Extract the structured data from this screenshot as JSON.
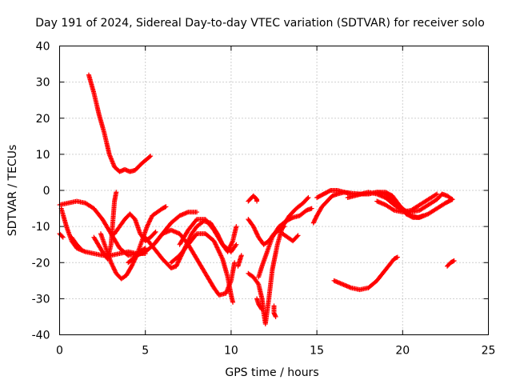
{
  "chart_data": {
    "type": "scatter",
    "title": "Day 191 of 2024, Sidereal Day-to-day VTEC variation (SDTVAR) for receiver solo",
    "xlabel": "GPS time / hours",
    "ylabel": "SDTVAR / TECUs",
    "xlim": [
      0,
      25
    ],
    "ylim": [
      -40,
      40
    ],
    "xticks": [
      0,
      5,
      10,
      15,
      20,
      25
    ],
    "yticks": [
      -40,
      -30,
      -20,
      -10,
      0,
      10,
      20,
      30,
      40
    ],
    "grid": true,
    "marker": "+",
    "color": "#ff0000",
    "series": [
      {
        "name": "arc-1",
        "points": [
          [
            1.7,
            32
          ],
          [
            2.0,
            27
          ],
          [
            2.3,
            21
          ],
          [
            2.6,
            16
          ],
          [
            2.9,
            10
          ],
          [
            3.2,
            6.5
          ],
          [
            3.5,
            5.2
          ],
          [
            3.8,
            5.8
          ],
          [
            4.1,
            5.2
          ],
          [
            4.4,
            5.6
          ],
          [
            4.8,
            7.5
          ],
          [
            5.3,
            9.5
          ]
        ]
      },
      {
        "name": "arc-2",
        "points": [
          [
            0,
            -4
          ],
          [
            0.5,
            -3.5
          ],
          [
            1.0,
            -3
          ],
          [
            1.5,
            -3.5
          ],
          [
            2.0,
            -5
          ],
          [
            2.5,
            -8
          ],
          [
            3.0,
            -12
          ],
          [
            3.5,
            -16
          ],
          [
            4.0,
            -18
          ],
          [
            4.5,
            -17.5
          ],
          [
            5.0,
            -16
          ]
        ]
      },
      {
        "name": "arc-3",
        "points": [
          [
            0.1,
            -5
          ],
          [
            0.4,
            -10
          ],
          [
            0.7,
            -14
          ],
          [
            1.0,
            -16
          ],
          [
            1.5,
            -17
          ],
          [
            2.0,
            -17.5
          ],
          [
            2.5,
            -18
          ],
          [
            3.0,
            -18
          ],
          [
            3.5,
            -17.5
          ],
          [
            4.0,
            -17
          ],
          [
            4.5,
            -17.5
          ],
          [
            5.0,
            -17.5
          ]
        ]
      },
      {
        "name": "arc-4",
        "points": [
          [
            0,
            -12
          ],
          [
            0.2,
            -13
          ]
        ]
      },
      {
        "name": "arc-5",
        "points": [
          [
            0.7,
            -13
          ],
          [
            1.0,
            -15
          ],
          [
            1.3,
            -16.5
          ]
        ]
      },
      {
        "name": "arc-6",
        "points": [
          [
            2.0,
            -13
          ],
          [
            2.5,
            -17
          ],
          [
            2.8,
            -19
          ],
          [
            3.0,
            -15
          ],
          [
            3.1,
            -9
          ],
          [
            3.2,
            -3
          ],
          [
            3.3,
            -0.5
          ]
        ]
      },
      {
        "name": "arc-7",
        "points": [
          [
            2.4,
            -12
          ],
          [
            2.7,
            -16
          ],
          [
            3.0,
            -20
          ],
          [
            3.3,
            -23
          ],
          [
            3.6,
            -24.5
          ],
          [
            3.9,
            -23.5
          ],
          [
            4.2,
            -21
          ],
          [
            4.5,
            -18
          ],
          [
            4.8,
            -14
          ],
          [
            5.1,
            -10
          ],
          [
            5.4,
            -7
          ],
          [
            5.7,
            -6
          ],
          [
            6.0,
            -5
          ],
          [
            6.2,
            -4.5
          ]
        ]
      },
      {
        "name": "arc-8",
        "points": [
          [
            3.2,
            -12
          ],
          [
            3.5,
            -10
          ],
          [
            3.8,
            -8
          ],
          [
            4.1,
            -6.5
          ],
          [
            4.4,
            -8
          ],
          [
            4.7,
            -12
          ],
          [
            5.0,
            -14
          ],
          [
            5.3,
            -13
          ],
          [
            5.6,
            -11.5
          ]
        ]
      },
      {
        "name": "arc-9",
        "points": [
          [
            5.0,
            -13
          ],
          [
            5.5,
            -16
          ],
          [
            6.0,
            -19
          ],
          [
            6.5,
            -21.5
          ],
          [
            6.8,
            -21
          ],
          [
            7.1,
            -18
          ],
          [
            7.4,
            -15
          ],
          [
            7.7,
            -12
          ],
          [
            8.0,
            -10
          ],
          [
            8.4,
            -8.5
          ],
          [
            8.8,
            -9
          ],
          [
            9.2,
            -12
          ],
          [
            9.5,
            -15
          ],
          [
            9.8,
            -17
          ],
          [
            10.1,
            -14
          ],
          [
            10.3,
            -10
          ]
        ]
      },
      {
        "name": "arc-10",
        "points": [
          [
            4.0,
            -20
          ],
          [
            4.5,
            -18
          ],
          [
            5.0,
            -17
          ],
          [
            5.5,
            -15
          ],
          [
            6.0,
            -12
          ],
          [
            6.5,
            -9
          ],
          [
            7.0,
            -7
          ],
          [
            7.5,
            -6
          ],
          [
            8.0,
            -6
          ]
        ]
      },
      {
        "name": "arc-11",
        "points": [
          [
            5.5,
            -15
          ],
          [
            6.0,
            -12
          ],
          [
            6.5,
            -11
          ],
          [
            7.0,
            -12
          ],
          [
            7.5,
            -15
          ],
          [
            8.0,
            -19
          ],
          [
            8.5,
            -23
          ],
          [
            9.0,
            -27
          ],
          [
            9.3,
            -29
          ],
          [
            9.7,
            -28.5
          ],
          [
            10.0,
            -25
          ],
          [
            10.2,
            -20
          ]
        ]
      },
      {
        "name": "arc-12",
        "points": [
          [
            7.0,
            -15
          ],
          [
            7.5,
            -11
          ],
          [
            8.0,
            -8
          ],
          [
            8.5,
            -8
          ],
          [
            9.0,
            -11
          ],
          [
            9.5,
            -15
          ],
          [
            10.0,
            -17
          ],
          [
            10.3,
            -15
          ]
        ]
      },
      {
        "name": "arc-13",
        "points": [
          [
            6.5,
            -20
          ],
          [
            7.0,
            -18
          ],
          [
            7.5,
            -15
          ],
          [
            8.0,
            -12
          ],
          [
            8.5,
            -12
          ],
          [
            9.0,
            -14
          ],
          [
            9.5,
            -19
          ],
          [
            9.8,
            -24
          ],
          [
            10.0,
            -29
          ],
          [
            10.1,
            -31
          ]
        ]
      },
      {
        "name": "arc-14",
        "points": [
          [
            10.4,
            -21
          ],
          [
            10.5,
            -19.5
          ],
          [
            10.6,
            -18
          ]
        ]
      },
      {
        "name": "arc-15",
        "points": [
          [
            11.0,
            -3
          ],
          [
            11.3,
            -1.5
          ],
          [
            11.5,
            -2.5
          ],
          [
            11.5,
            -3
          ]
        ]
      },
      {
        "name": "arc-16",
        "points": [
          [
            11.0,
            -8
          ],
          [
            11.3,
            -10
          ],
          [
            11.6,
            -13
          ],
          [
            11.9,
            -15
          ],
          [
            12.2,
            -14
          ],
          [
            12.5,
            -12
          ],
          [
            12.8,
            -11
          ],
          [
            13.1,
            -10
          ]
        ]
      },
      {
        "name": "arc-17",
        "points": [
          [
            11.0,
            -23
          ],
          [
            11.3,
            -24
          ],
          [
            11.6,
            -26
          ],
          [
            11.8,
            -30
          ],
          [
            11.9,
            -34
          ],
          [
            12.0,
            -37
          ],
          [
            12.2,
            -30
          ],
          [
            12.4,
            -22
          ],
          [
            12.7,
            -15
          ],
          [
            13.0,
            -10
          ],
          [
            13.4,
            -7
          ],
          [
            13.8,
            -5
          ],
          [
            14.2,
            -3.5
          ],
          [
            14.5,
            -2
          ]
        ]
      },
      {
        "name": "arc-18",
        "points": [
          [
            11.5,
            -30
          ],
          [
            11.6,
            -31.5
          ],
          [
            11.8,
            -33
          ]
        ]
      },
      {
        "name": "arc-19",
        "points": [
          [
            11.6,
            -24
          ],
          [
            11.8,
            -21
          ],
          [
            12.1,
            -17
          ],
          [
            12.4,
            -13
          ],
          [
            12.8,
            -10
          ],
          [
            13.2,
            -8.5
          ],
          [
            13.6,
            -7.5
          ],
          [
            14.0,
            -7
          ],
          [
            14.4,
            -5.5
          ],
          [
            14.7,
            -5
          ]
        ]
      },
      {
        "name": "arc-20",
        "points": [
          [
            12.5,
            -32
          ],
          [
            12.5,
            -34
          ],
          [
            12.6,
            -35
          ]
        ]
      },
      {
        "name": "arc-21",
        "points": [
          [
            13.0,
            -12
          ],
          [
            13.3,
            -13
          ],
          [
            13.6,
            -14
          ],
          [
            13.9,
            -12.5
          ]
        ]
      },
      {
        "name": "arc-22",
        "points": [
          [
            14.8,
            -9
          ],
          [
            15.0,
            -7
          ],
          [
            15.3,
            -4.5
          ],
          [
            15.6,
            -3
          ],
          [
            15.9,
            -1.5
          ],
          [
            16.2,
            -1
          ],
          [
            16.6,
            -0.5
          ],
          [
            17.0,
            -0.8
          ],
          [
            17.5,
            -1
          ],
          [
            18.0,
            -1
          ],
          [
            18.5,
            -0.5
          ],
          [
            19.0,
            -0.5
          ],
          [
            19.4,
            -1.5
          ],
          [
            19.8,
            -4
          ],
          [
            20.2,
            -6.5
          ],
          [
            20.6,
            -7.5
          ],
          [
            21.0,
            -7.5
          ],
          [
            21.5,
            -6.5
          ],
          [
            22.0,
            -5
          ],
          [
            22.5,
            -3.5
          ],
          [
            22.9,
            -2.5
          ]
        ]
      },
      {
        "name": "arc-23",
        "points": [
          [
            15.0,
            -2
          ],
          [
            15.4,
            -1
          ],
          [
            15.8,
            0
          ],
          [
            16.2,
            0
          ],
          [
            16.6,
            -0.5
          ],
          [
            17.0,
            -1
          ],
          [
            17.5,
            -1
          ],
          [
            18.0,
            -1
          ],
          [
            18.5,
            -0.5
          ],
          [
            19.0,
            -1
          ],
          [
            19.5,
            -3
          ],
          [
            20.0,
            -5
          ],
          [
            20.5,
            -7
          ],
          [
            20.9,
            -7.5
          ],
          [
            21.2,
            -7
          ]
        ]
      },
      {
        "name": "arc-24",
        "points": [
          [
            16.8,
            -2
          ],
          [
            17.2,
            -1.5
          ],
          [
            17.6,
            -1
          ],
          [
            18.0,
            -0.5
          ],
          [
            18.5,
            -1
          ],
          [
            19.0,
            -2
          ],
          [
            19.5,
            -4
          ],
          [
            20.0,
            -5.5
          ],
          [
            20.5,
            -6
          ],
          [
            21.0,
            -5.5
          ],
          [
            21.5,
            -4
          ],
          [
            22.0,
            -2.5
          ],
          [
            22.3,
            -1
          ],
          [
            22.6,
            -1.5
          ],
          [
            22.9,
            -2.5
          ]
        ]
      },
      {
        "name": "arc-25",
        "points": [
          [
            18.5,
            -3
          ],
          [
            19.0,
            -4
          ],
          [
            19.5,
            -5.5
          ],
          [
            20.0,
            -6
          ],
          [
            20.5,
            -5.5
          ],
          [
            21.0,
            -4
          ],
          [
            21.5,
            -2.5
          ],
          [
            22.0,
            -1
          ]
        ]
      },
      {
        "name": "arc-26",
        "points": [
          [
            16.0,
            -25
          ],
          [
            16.5,
            -26
          ],
          [
            17.0,
            -27
          ],
          [
            17.5,
            -27.5
          ],
          [
            18.0,
            -27
          ],
          [
            18.5,
            -25
          ],
          [
            19.0,
            -22
          ],
          [
            19.5,
            -19
          ],
          [
            19.7,
            -18.5
          ]
        ]
      },
      {
        "name": "arc-27",
        "points": [
          [
            22.6,
            -21
          ],
          [
            22.8,
            -20
          ],
          [
            23.0,
            -19.5
          ]
        ]
      }
    ]
  }
}
